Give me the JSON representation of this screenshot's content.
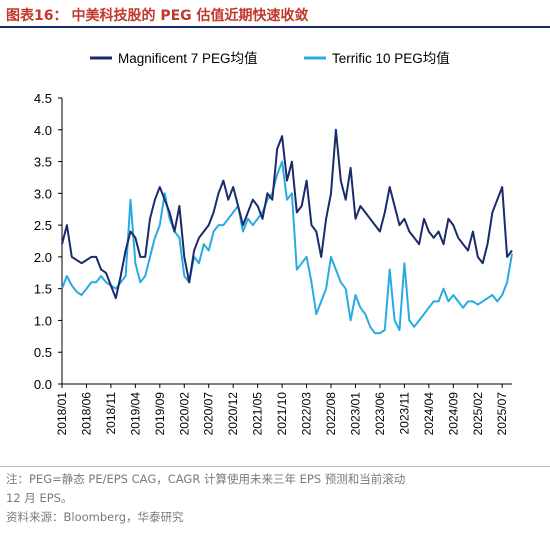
{
  "title": {
    "figure_no": "图表16：",
    "text": "中美科技股的 PEG 估值近期快速收敛"
  },
  "notes": {
    "line1": "注：PEG=静态 PE/EPS CAG，CAGR 计算使用未来三年 EPS 预测和当前滚动",
    "line2": "12 月 EPS。",
    "source": "资料来源：Bloomberg，华泰研究"
  },
  "colors": {
    "magnificent": "#1a2b6b",
    "terrific": "#29abe2",
    "title": "#c0392b"
  },
  "chart_data": {
    "type": "line",
    "ylim": [
      0,
      4.5
    ],
    "yticks": [
      "0.0",
      "0.5",
      "1.0",
      "1.5",
      "2.0",
      "2.5",
      "3.0",
      "3.5",
      "4.0",
      "4.5"
    ],
    "xticks": [
      "2018/01",
      "2018/06",
      "2018/11",
      "2019/04",
      "2019/09",
      "2020/02",
      "2020/07",
      "2020/12",
      "2021/05",
      "2021/10",
      "2022/03",
      "2022/08",
      "2023/01",
      "2023/06",
      "2023/11",
      "2024/04",
      "2024/09",
      "2025/02",
      "2025/07"
    ],
    "legend": {
      "placement": "top"
    },
    "series": [
      {
        "name": "Magnificent 7 PEG均值",
        "points": [
          [
            "2018/01",
            2.2
          ],
          [
            "2018/02",
            2.5
          ],
          [
            "2018/03",
            2.0
          ],
          [
            "2018/04",
            1.95
          ],
          [
            "2018/05",
            1.9
          ],
          [
            "2018/06",
            1.95
          ],
          [
            "2018/07",
            2.0
          ],
          [
            "2018/08",
            2.0
          ],
          [
            "2018/09",
            1.8
          ],
          [
            "2018/10",
            1.75
          ],
          [
            "2018/11",
            1.55
          ],
          [
            "2018/12",
            1.35
          ],
          [
            "2019/01",
            1.7
          ],
          [
            "2019/02",
            2.1
          ],
          [
            "2019/03",
            2.4
          ],
          [
            "2019/04",
            2.3
          ],
          [
            "2019/05",
            2.0
          ],
          [
            "2019/06",
            2.0
          ],
          [
            "2019/07",
            2.6
          ],
          [
            "2019/08",
            2.9
          ],
          [
            "2019/09",
            3.1
          ],
          [
            "2019/10",
            2.9
          ],
          [
            "2019/11",
            2.7
          ],
          [
            "2019/12",
            2.4
          ],
          [
            "2020/01",
            2.8
          ],
          [
            "2020/02",
            2.0
          ],
          [
            "2020/03",
            1.6
          ],
          [
            "2020/04",
            2.1
          ],
          [
            "2020/05",
            2.3
          ],
          [
            "2020/06",
            2.4
          ],
          [
            "2020/07",
            2.5
          ],
          [
            "2020/08",
            2.7
          ],
          [
            "2020/09",
            3.0
          ],
          [
            "2020/10",
            3.2
          ],
          [
            "2020/11",
            2.9
          ],
          [
            "2020/12",
            3.1
          ],
          [
            "2021/01",
            2.8
          ],
          [
            "2021/02",
            2.5
          ],
          [
            "2021/03",
            2.7
          ],
          [
            "2021/04",
            2.9
          ],
          [
            "2021/05",
            2.8
          ],
          [
            "2021/06",
            2.6
          ],
          [
            "2021/07",
            3.0
          ],
          [
            "2021/08",
            2.9
          ],
          [
            "2021/09",
            3.7
          ],
          [
            "2021/10",
            3.9
          ],
          [
            "2021/11",
            3.2
          ],
          [
            "2021/12",
            3.5
          ],
          [
            "2022/01",
            2.7
          ],
          [
            "2022/02",
            2.8
          ],
          [
            "2022/03",
            3.2
          ],
          [
            "2022/04",
            2.5
          ],
          [
            "2022/05",
            2.4
          ],
          [
            "2022/06",
            2.0
          ],
          [
            "2022/07",
            2.6
          ],
          [
            "2022/08",
            3.0
          ],
          [
            "2022/09",
            4.0
          ],
          [
            "2022/10",
            3.2
          ],
          [
            "2022/11",
            2.9
          ],
          [
            "2022/12",
            3.4
          ],
          [
            "2023/01",
            2.6
          ],
          [
            "2023/02",
            2.8
          ],
          [
            "2023/03",
            2.7
          ],
          [
            "2023/04",
            2.6
          ],
          [
            "2023/05",
            2.5
          ],
          [
            "2023/06",
            2.4
          ],
          [
            "2023/07",
            2.7
          ],
          [
            "2023/08",
            3.1
          ],
          [
            "2023/09",
            2.8
          ],
          [
            "2023/10",
            2.5
          ],
          [
            "2023/11",
            2.6
          ],
          [
            "2023/12",
            2.4
          ],
          [
            "2024/01",
            2.3
          ],
          [
            "2024/02",
            2.2
          ],
          [
            "2024/03",
            2.6
          ],
          [
            "2024/04",
            2.4
          ],
          [
            "2024/05",
            2.3
          ],
          [
            "2024/06",
            2.4
          ],
          [
            "2024/07",
            2.2
          ],
          [
            "2024/08",
            2.6
          ],
          [
            "2024/09",
            2.5
          ],
          [
            "2024/10",
            2.3
          ],
          [
            "2024/11",
            2.2
          ],
          [
            "2024/12",
            2.1
          ],
          [
            "2025/01",
            2.4
          ],
          [
            "2025/02",
            2.0
          ],
          [
            "2025/03",
            1.9
          ],
          [
            "2025/04",
            2.2
          ],
          [
            "2025/05",
            2.7
          ],
          [
            "2025/06",
            2.9
          ],
          [
            "2025/07",
            3.1
          ],
          [
            "2025/08",
            2.0
          ],
          [
            "2025/09",
            2.1
          ]
        ]
      },
      {
        "name": "Terrific 10 PEG均值",
        "points": [
          [
            "2018/01",
            1.5
          ],
          [
            "2018/02",
            1.7
          ],
          [
            "2018/03",
            1.55
          ],
          [
            "2018/04",
            1.45
          ],
          [
            "2018/05",
            1.4
          ],
          [
            "2018/06",
            1.5
          ],
          [
            "2018/07",
            1.6
          ],
          [
            "2018/08",
            1.6
          ],
          [
            "2018/09",
            1.7
          ],
          [
            "2018/10",
            1.6
          ],
          [
            "2018/11",
            1.55
          ],
          [
            "2018/12",
            1.5
          ],
          [
            "2019/01",
            1.6
          ],
          [
            "2019/02",
            1.7
          ],
          [
            "2019/03",
            2.9
          ],
          [
            "2019/04",
            1.9
          ],
          [
            "2019/05",
            1.6
          ],
          [
            "2019/06",
            1.7
          ],
          [
            "2019/07",
            2.0
          ],
          [
            "2019/08",
            2.3
          ],
          [
            "2019/09",
            2.5
          ],
          [
            "2019/10",
            3.0
          ],
          [
            "2019/11",
            2.6
          ],
          [
            "2019/12",
            2.4
          ],
          [
            "2020/01",
            2.3
          ],
          [
            "2020/02",
            1.7
          ],
          [
            "2020/03",
            1.6
          ],
          [
            "2020/04",
            2.0
          ],
          [
            "2020/05",
            1.9
          ],
          [
            "2020/06",
            2.2
          ],
          [
            "2020/07",
            2.1
          ],
          [
            "2020/08",
            2.4
          ],
          [
            "2020/09",
            2.5
          ],
          [
            "2020/10",
            2.5
          ],
          [
            "2020/11",
            2.6
          ],
          [
            "2020/12",
            2.7
          ],
          [
            "2021/01",
            2.8
          ],
          [
            "2021/02",
            2.4
          ],
          [
            "2021/03",
            2.6
          ],
          [
            "2021/04",
            2.5
          ],
          [
            "2021/05",
            2.6
          ],
          [
            "2021/06",
            2.7
          ],
          [
            "2021/07",
            2.9
          ],
          [
            "2021/08",
            3.0
          ],
          [
            "2021/09",
            3.3
          ],
          [
            "2021/10",
            3.5
          ],
          [
            "2021/11",
            2.9
          ],
          [
            "2021/12",
            3.0
          ],
          [
            "2022/01",
            1.8
          ],
          [
            "2022/02",
            1.9
          ],
          [
            "2022/03",
            2.0
          ],
          [
            "2022/04",
            1.6
          ],
          [
            "2022/05",
            1.1
          ],
          [
            "2022/06",
            1.3
          ],
          [
            "2022/07",
            1.5
          ],
          [
            "2022/08",
            2.0
          ],
          [
            "2022/09",
            1.8
          ],
          [
            "2022/10",
            1.6
          ],
          [
            "2022/11",
            1.5
          ],
          [
            "2022/12",
            1.0
          ],
          [
            "2023/01",
            1.4
          ],
          [
            "2023/02",
            1.2
          ],
          [
            "2023/03",
            1.1
          ],
          [
            "2023/04",
            0.9
          ],
          [
            "2023/05",
            0.8
          ],
          [
            "2023/06",
            0.8
          ],
          [
            "2023/07",
            0.85
          ],
          [
            "2023/08",
            1.8
          ],
          [
            "2023/09",
            1.0
          ],
          [
            "2023/10",
            0.85
          ],
          [
            "2023/11",
            1.9
          ],
          [
            "2023/12",
            1.0
          ],
          [
            "2024/01",
            0.9
          ],
          [
            "2024/02",
            1.0
          ],
          [
            "2024/03",
            1.1
          ],
          [
            "2024/04",
            1.2
          ],
          [
            "2024/05",
            1.3
          ],
          [
            "2024/06",
            1.3
          ],
          [
            "2024/07",
            1.5
          ],
          [
            "2024/08",
            1.3
          ],
          [
            "2024/09",
            1.4
          ],
          [
            "2024/10",
            1.3
          ],
          [
            "2024/11",
            1.2
          ],
          [
            "2024/12",
            1.3
          ],
          [
            "2025/01",
            1.3
          ],
          [
            "2025/02",
            1.25
          ],
          [
            "2025/03",
            1.3
          ],
          [
            "2025/04",
            1.35
          ],
          [
            "2025/05",
            1.4
          ],
          [
            "2025/06",
            1.3
          ],
          [
            "2025/07",
            1.4
          ],
          [
            "2025/08",
            1.6
          ],
          [
            "2025/09",
            2.05
          ]
        ]
      }
    ]
  }
}
